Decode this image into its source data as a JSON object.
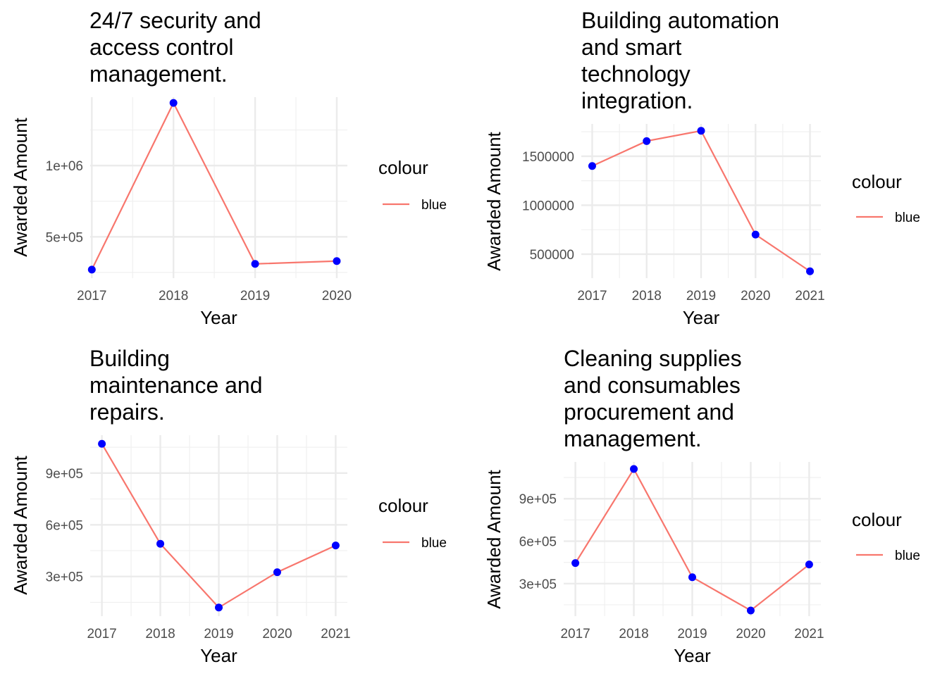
{
  "chart_data": [
    {
      "type": "line",
      "title": "24/7 security and\naccess control\nmanagement.",
      "xlabel": "Year",
      "ylabel": "Awarded Amount",
      "x": [
        2017,
        2018,
        2019,
        2020
      ],
      "series": [
        {
          "name": "blue",
          "values": [
            270000,
            1440000,
            310000,
            330000
          ]
        }
      ],
      "xticks": [
        2017,
        2018,
        2019,
        2020
      ],
      "yticks": [
        500000,
        1000000
      ],
      "ytick_labels": [
        "5e+05",
        "1e+06"
      ],
      "xlim": [
        2016.98,
        2020.13
      ],
      "ylim": [
        210000,
        1480000
      ],
      "legend": {
        "title": "colour",
        "entries": [
          "blue"
        ],
        "placement": "right"
      },
      "line_color": "#F8766D",
      "point_color": "#0000FF",
      "grid": true
    },
    {
      "type": "line",
      "title": "Building automation\nand smart\ntechnology\nintegration.",
      "xlabel": "Year",
      "ylabel": "Awarded Amount",
      "x": [
        2017,
        2018,
        2019,
        2020,
        2021
      ],
      "series": [
        {
          "name": "blue",
          "values": [
            1400000,
            1655000,
            1760000,
            700000,
            325000
          ]
        }
      ],
      "xticks": [
        2017,
        2018,
        2019,
        2020,
        2021
      ],
      "yticks": [
        500000,
        1000000,
        1500000
      ],
      "ytick_labels": [
        "500000",
        "1000000",
        "1500000"
      ],
      "xlim": [
        2016.8,
        2021.2
      ],
      "ylim": [
        255000,
        1830000
      ],
      "legend": {
        "title": "colour",
        "entries": [
          "blue"
        ],
        "placement": "right"
      },
      "line_color": "#F8766D",
      "point_color": "#0000FF",
      "grid": true
    },
    {
      "type": "line",
      "title": "Building\nmaintenance and\nrepairs.",
      "xlabel": "Year",
      "ylabel": "Awarded Amount",
      "x": [
        2017,
        2018,
        2019,
        2020,
        2021
      ],
      "series": [
        {
          "name": "blue",
          "values": [
            1070000,
            490000,
            120000,
            325000,
            480000
          ]
        }
      ],
      "xticks": [
        2017,
        2018,
        2019,
        2020,
        2021
      ],
      "yticks": [
        300000,
        600000,
        900000
      ],
      "ytick_labels": [
        "3e+05",
        "6e+05",
        "9e+05"
      ],
      "xlim": [
        2016.8,
        2021.2
      ],
      "ylim": [
        70000,
        1120000
      ],
      "legend": {
        "title": "colour",
        "entries": [
          "blue"
        ],
        "placement": "right"
      },
      "line_color": "#F8766D",
      "point_color": "#0000FF",
      "grid": true
    },
    {
      "type": "line",
      "title": "Cleaning supplies\nand consumables\nprocurement and\nmanagement.",
      "xlabel": "Year",
      "ylabel": "Awarded Amount",
      "x": [
        2017,
        2018,
        2019,
        2020,
        2021
      ],
      "series": [
        {
          "name": "blue",
          "values": [
            445000,
            1110000,
            345000,
            110000,
            435000
          ]
        }
      ],
      "xticks": [
        2017,
        2018,
        2019,
        2020,
        2021
      ],
      "yticks": [
        300000,
        600000,
        900000
      ],
      "ytick_labels": [
        "3e+05",
        "6e+05",
        "9e+05"
      ],
      "xlim": [
        2016.8,
        2021.2
      ],
      "ylim": [
        70000,
        1160000
      ],
      "legend": {
        "title": "colour",
        "entries": [
          "blue"
        ],
        "placement": "right"
      },
      "line_color": "#F8766D",
      "point_color": "#0000FF",
      "grid": true
    }
  ]
}
